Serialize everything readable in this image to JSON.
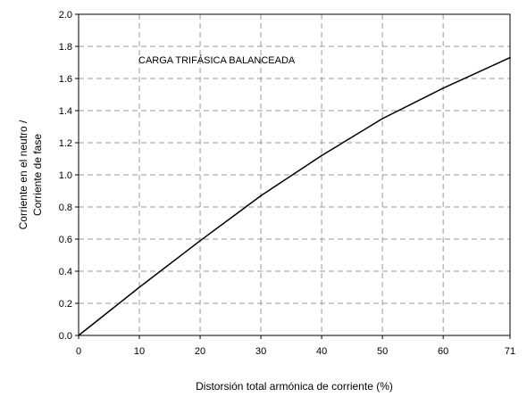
{
  "chart_data": {
    "type": "line",
    "annotation": "CARGA TRIFÁSICA BALANCEADA",
    "xlabel": "Distorsión total armónica de corriente (%)",
    "ylabel_lines": [
      "Corriente en el neutro /",
      "Corriente de fase"
    ],
    "x_ticks": [
      "0",
      "10",
      "20",
      "30",
      "40",
      "50",
      "60",
      "71"
    ],
    "y_ticks": [
      "0.0",
      "0.2",
      "0.4",
      "0.6",
      "0.8",
      "1.0",
      "1.2",
      "1.4",
      "1.6",
      "1.8",
      "2.0"
    ],
    "xlim": [
      0,
      71
    ],
    "ylim": [
      0,
      2.0
    ],
    "grid": true,
    "series": [
      {
        "x": [
          0,
          10,
          20,
          30,
          40,
          50,
          60,
          71
        ],
        "y": [
          0,
          0.3,
          0.59,
          0.87,
          1.12,
          1.35,
          1.54,
          1.73
        ]
      }
    ]
  }
}
